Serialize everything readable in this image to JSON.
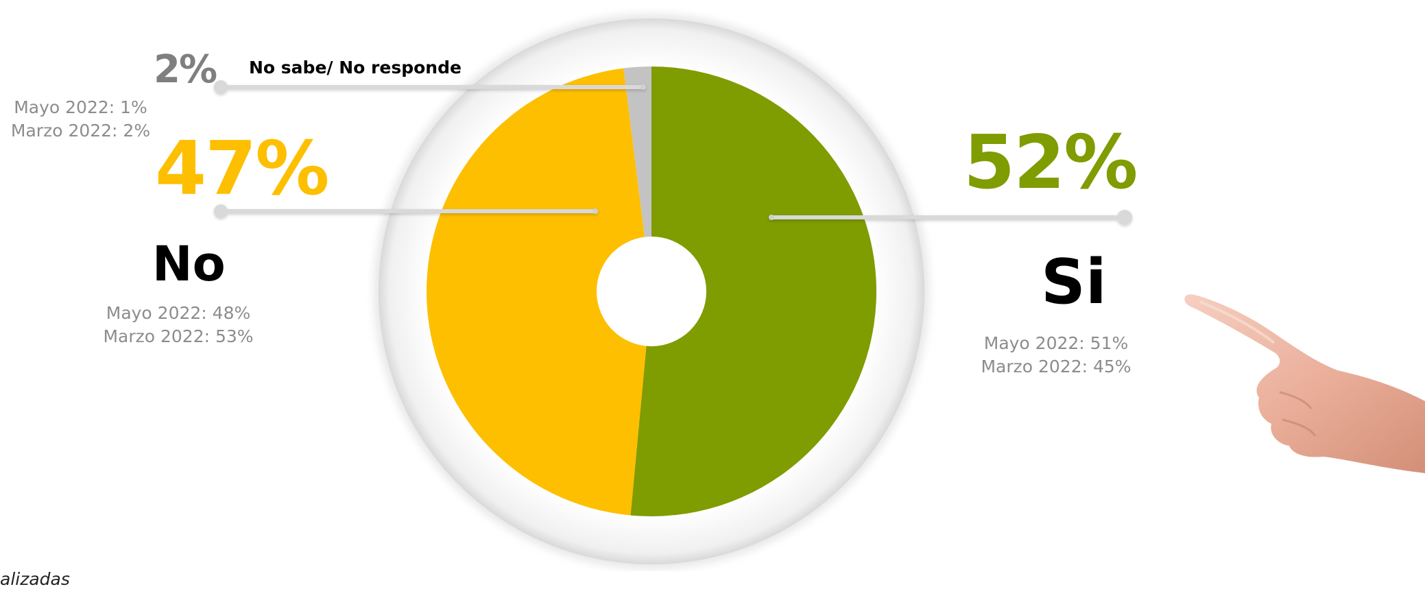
{
  "chart_data": {
    "type": "pie",
    "series": [
      {
        "name": "Si",
        "value": 52,
        "value_label": "52%",
        "color": "#7f9c00",
        "comparisons": [
          "Mayo 2022: 51%",
          "Marzo 2022: 45%"
        ]
      },
      {
        "name": "No",
        "value": 47,
        "value_label": "47%",
        "color": "#fdbf00",
        "comparisons": [
          "Mayo 2022: 48%",
          "Marzo 2022: 53%"
        ]
      },
      {
        "name": "No sabe/ No responde",
        "value": 2,
        "value_label": "2%",
        "color": "#c3c3c3",
        "comparisons": [
          "Mayo 2022: 1%",
          "Marzo 2022: 2%"
        ]
      }
    ],
    "donut_hole": true
  },
  "footnote": "alizadas",
  "decoration": {
    "hand": "pointing-hand-image"
  }
}
